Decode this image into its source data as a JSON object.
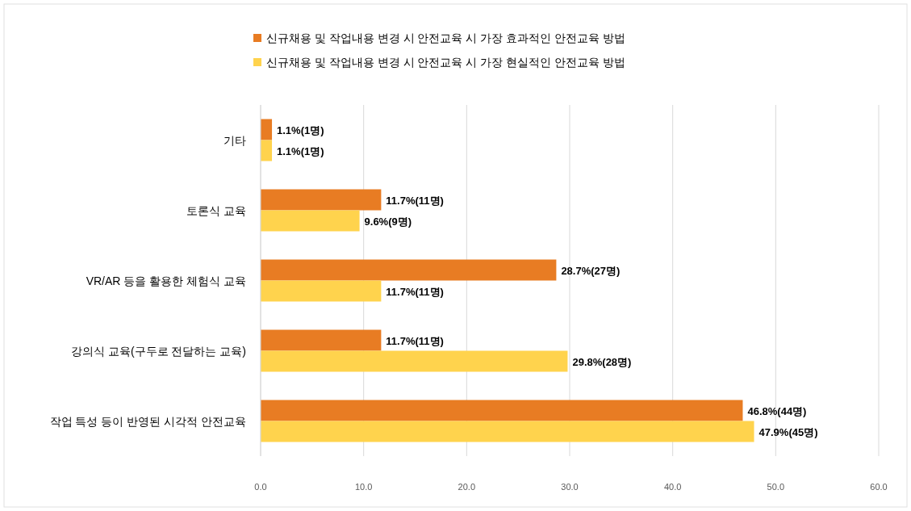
{
  "chart_data": {
    "type": "bar",
    "orientation": "horizontal",
    "categories": [
      "기타",
      "토론식 교육",
      "VR/AR 등을 활용한 체험식 교육",
      "강의식 교육(구두로 전달하는 교육)",
      "작업 특성 등이 반영된 시각적 안전교육"
    ],
    "series": [
      {
        "name": "신규채용 및 작업내용 변경 시 안전교육 시 가장 효과적인 안전교육 방법",
        "color": "#e87c23",
        "values": [
          1.1,
          11.7,
          28.7,
          11.7,
          46.8
        ],
        "value_labels": [
          "1.1%(1명)",
          "11.7%(11명)",
          "28.7%(27명)",
          "11.7%(11명)",
          "46.8%(44명)"
        ]
      },
      {
        "name": "신규채용 및 작업내용 변경 시 안전교육 시 가장 현실적인 안전교육 방법",
        "color": "#ffd34d",
        "values": [
          1.1,
          9.6,
          11.7,
          29.8,
          47.9
        ],
        "value_labels": [
          "1.1%(1명)",
          "9.6%(9명)",
          "11.7%(11명)",
          "29.8%(28명)",
          "47.9%(45명)"
        ]
      }
    ],
    "xlim": [
      0,
      60
    ],
    "xticks": [
      {
        "value": 0,
        "label": "0.0"
      },
      {
        "value": 10,
        "label": "10.0"
      },
      {
        "value": 20,
        "label": "20.0"
      },
      {
        "value": 30,
        "label": "30.0"
      },
      {
        "value": 40,
        "label": "40.0"
      },
      {
        "value": 50,
        "label": "50.0"
      },
      {
        "value": 60,
        "label": "60.0"
      }
    ],
    "grid": "x",
    "legend": "top"
  }
}
